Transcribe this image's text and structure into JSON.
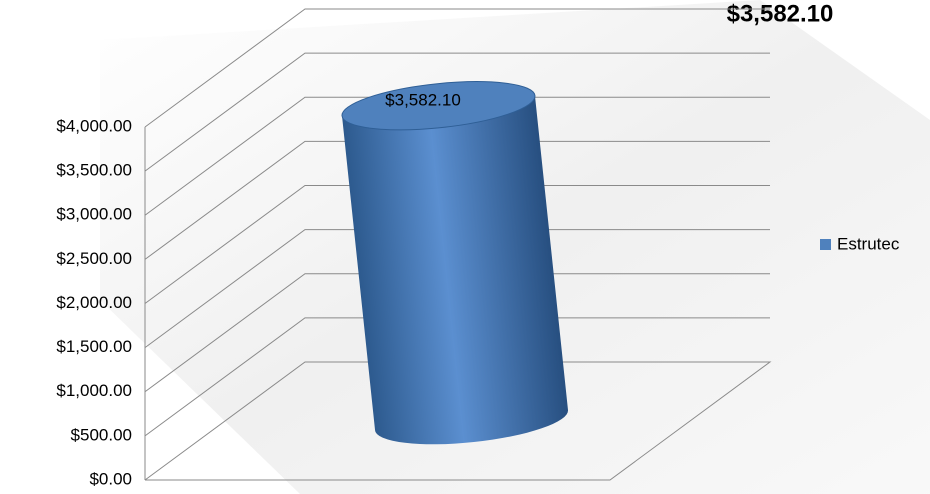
{
  "chart_data": {
    "type": "cylinder3d",
    "title": "$3,582.10",
    "categories": [
      null
    ],
    "series": [
      {
        "name": "Estrutec",
        "color": "#4f81bd",
        "values": [
          3582.1
        ],
        "value_labels": [
          "$3,582.10"
        ]
      }
    ],
    "ylim": [
      0,
      4000
    ],
    "yticks": [
      {
        "value": 0,
        "label": "$0.00"
      },
      {
        "value": 500,
        "label": "$500.00"
      },
      {
        "value": 1000,
        "label": "$1,000.00"
      },
      {
        "value": 1500,
        "label": "$1,500.00"
      },
      {
        "value": 2000,
        "label": "$2,000.00"
      },
      {
        "value": 2500,
        "label": "$2,500.00"
      },
      {
        "value": 3000,
        "label": "$3,000.00"
      },
      {
        "value": 3500,
        "label": "$3,500.00"
      },
      {
        "value": 4000,
        "label": "$4,000.00"
      }
    ],
    "grid": true,
    "legend": "right"
  }
}
